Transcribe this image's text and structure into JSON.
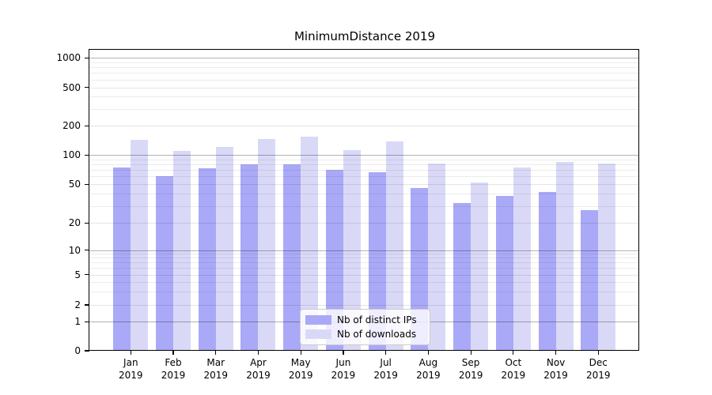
{
  "chart_data": {
    "type": "bar",
    "title": "MinimumDistance 2019",
    "categories": [
      "Jan 2019",
      "Feb 2019",
      "Mar 2019",
      "Apr 2019",
      "May 2019",
      "Jun 2019",
      "Jul 2019",
      "Aug 2019",
      "Sep 2019",
      "Oct 2019",
      "Nov 2019",
      "Dec 2019"
    ],
    "series": [
      {
        "name": "Nb of distinct IPs",
        "color": "#a9a9f7",
        "values": [
          75,
          60,
          73,
          81,
          80,
          71,
          66,
          46,
          32,
          38,
          42,
          27
        ]
      },
      {
        "name": "Nb of downloads",
        "color": "#d9d9f7",
        "values": [
          144,
          110,
          122,
          147,
          156,
          113,
          137,
          82,
          52,
          75,
          85,
          82
        ]
      }
    ],
    "xlabel": "",
    "ylabel": "",
    "yscale": "symlog",
    "ytick_values": [
      0,
      1,
      2,
      5,
      10,
      20,
      50,
      100,
      200,
      500,
      1000
    ],
    "ytick_labels": [
      "0",
      "1",
      "2",
      "5",
      "10",
      "20",
      "50",
      "100",
      "200",
      "500",
      "1000"
    ],
    "ylim": [
      0,
      1240
    ],
    "grid": "on",
    "legend_position": "lower center"
  }
}
